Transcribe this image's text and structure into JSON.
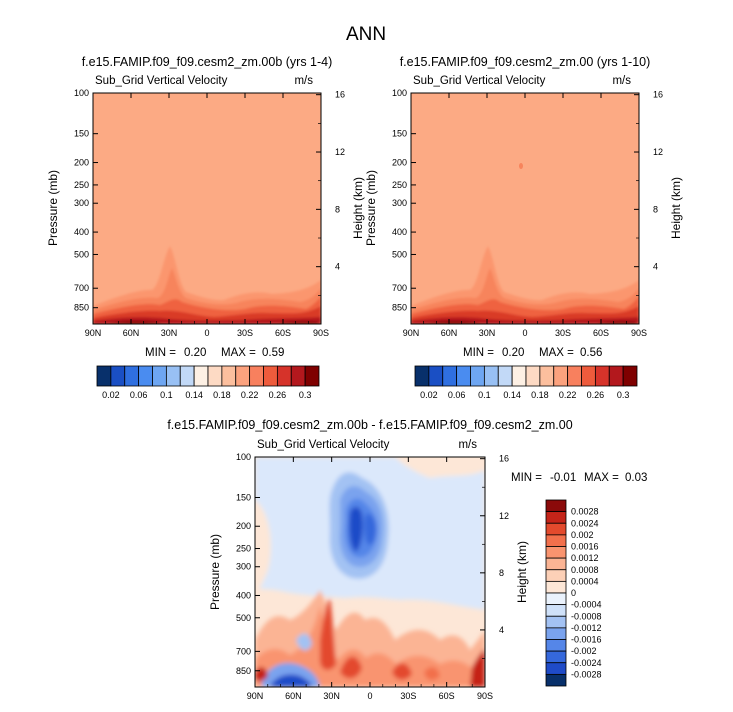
{
  "figure": {
    "title": "ANN"
  },
  "colors": {
    "background_field": "#fcaa84",
    "seq_scale": [
      "#08306b",
      "#1a4fc4",
      "#2f6fe0",
      "#4a8cf0",
      "#6ea6f2",
      "#98c0f4",
      "#c2d9f7",
      "#fdf0e4",
      "#fddac4",
      "#fcbf9e",
      "#fca27e",
      "#f8805e",
      "#ee5b3c",
      "#d6332a",
      "#b3181d",
      "#7f0000"
    ],
    "diff_scale": [
      "#08306b",
      "#1f4bc8",
      "#3568dc",
      "#5586e8",
      "#7aa3ee",
      "#a3c2f3",
      "#cfe1f9",
      "#eaf2fc",
      "#fde7d7",
      "#fcd0b7",
      "#fbb494",
      "#f9946f",
      "#f2704c",
      "#e34a2d",
      "#c52419",
      "#8b0a0a"
    ]
  },
  "chart_data": [
    {
      "type": "heatmap",
      "title": "f.e15.FAMIP.f09_f09.cesm2_zm.00b (yrs 1-4)",
      "variable": "Sub_Grid Vertical Velocity",
      "units": "m/s",
      "ylabel": "Pressure (mb)",
      "ylabel_right": "Height (km)",
      "x_ticks": [
        "90N",
        "60N",
        "30N",
        "0",
        "30S",
        "60S",
        "90S"
      ],
      "y_ticks": [
        "100",
        "150",
        "200",
        "250",
        "300",
        "400",
        "500",
        "700",
        "850"
      ],
      "y_ticks_values": [
        100,
        150,
        200,
        250,
        300,
        400,
        500,
        700,
        850
      ],
      "height_ticks": [
        "16",
        "12",
        "8",
        "4"
      ],
      "height_ticks_values": [
        16,
        12,
        8,
        4
      ],
      "ylim": [
        100,
        1000
      ],
      "stats": {
        "min_label": "MIN =",
        "min": "0.20",
        "max_label": "MAX =",
        "max": "0.59"
      },
      "colorbar_labels": [
        "0.02",
        "0.06",
        "0.1",
        "0.14",
        "0.18",
        "0.22",
        "0.26",
        "0.3"
      ]
    },
    {
      "type": "heatmap",
      "title": "f.e15.FAMIP.f09_f09.cesm2_zm.00 (yrs 1-10)",
      "variable": "Sub_Grid Vertical Velocity",
      "units": "m/s",
      "ylabel": "Pressure (mb)",
      "ylabel_right": "Height (km)",
      "x_ticks": [
        "90N",
        "60N",
        "30N",
        "0",
        "30S",
        "60S",
        "90S"
      ],
      "y_ticks": [
        "100",
        "150",
        "200",
        "250",
        "300",
        "400",
        "500",
        "700",
        "850"
      ],
      "y_ticks_values": [
        100,
        150,
        200,
        250,
        300,
        400,
        500,
        700,
        850
      ],
      "height_ticks": [
        "16",
        "12",
        "8",
        "4"
      ],
      "height_ticks_values": [
        16,
        12,
        8,
        4
      ],
      "ylim": [
        100,
        1000
      ],
      "stats": {
        "min_label": "MIN =",
        "min": "0.20",
        "max_label": "MAX =",
        "max": "0.56"
      },
      "colorbar_labels": [
        "0.02",
        "0.06",
        "0.1",
        "0.14",
        "0.18",
        "0.22",
        "0.26",
        "0.3"
      ]
    },
    {
      "type": "heatmap",
      "title": "f.e15.FAMIP.f09_f09.cesm2_zm.00b - f.e15.FAMIP.f09_f09.cesm2_zm.00",
      "variable": "Sub_Grid Vertical Velocity",
      "units": "m/s",
      "ylabel": "Pressure (mb)",
      "ylabel_right": "Height (km)",
      "x_ticks": [
        "90N",
        "60N",
        "30N",
        "0",
        "30S",
        "60S",
        "90S"
      ],
      "y_ticks": [
        "100",
        "150",
        "200",
        "250",
        "300",
        "400",
        "500",
        "700",
        "850"
      ],
      "y_ticks_values": [
        100,
        150,
        200,
        250,
        300,
        400,
        500,
        700,
        850
      ],
      "height_ticks": [
        "16",
        "12",
        "8",
        "4"
      ],
      "height_ticks_values": [
        16,
        12,
        8,
        4
      ],
      "ylim": [
        100,
        1000
      ],
      "stats": {
        "min_label": "MIN =",
        "min": "-0.01",
        "max_label": "MAX =",
        "max": "0.03"
      },
      "colorbar_labels": [
        "0.0028",
        "0.0024",
        "0.002",
        "0.0016",
        "0.0012",
        "0.0008",
        "0.0004",
        "0",
        "-0.0004",
        "-0.0008",
        "-0.0012",
        "-0.0016",
        "-0.002",
        "-0.0024",
        "-0.0028"
      ]
    }
  ]
}
